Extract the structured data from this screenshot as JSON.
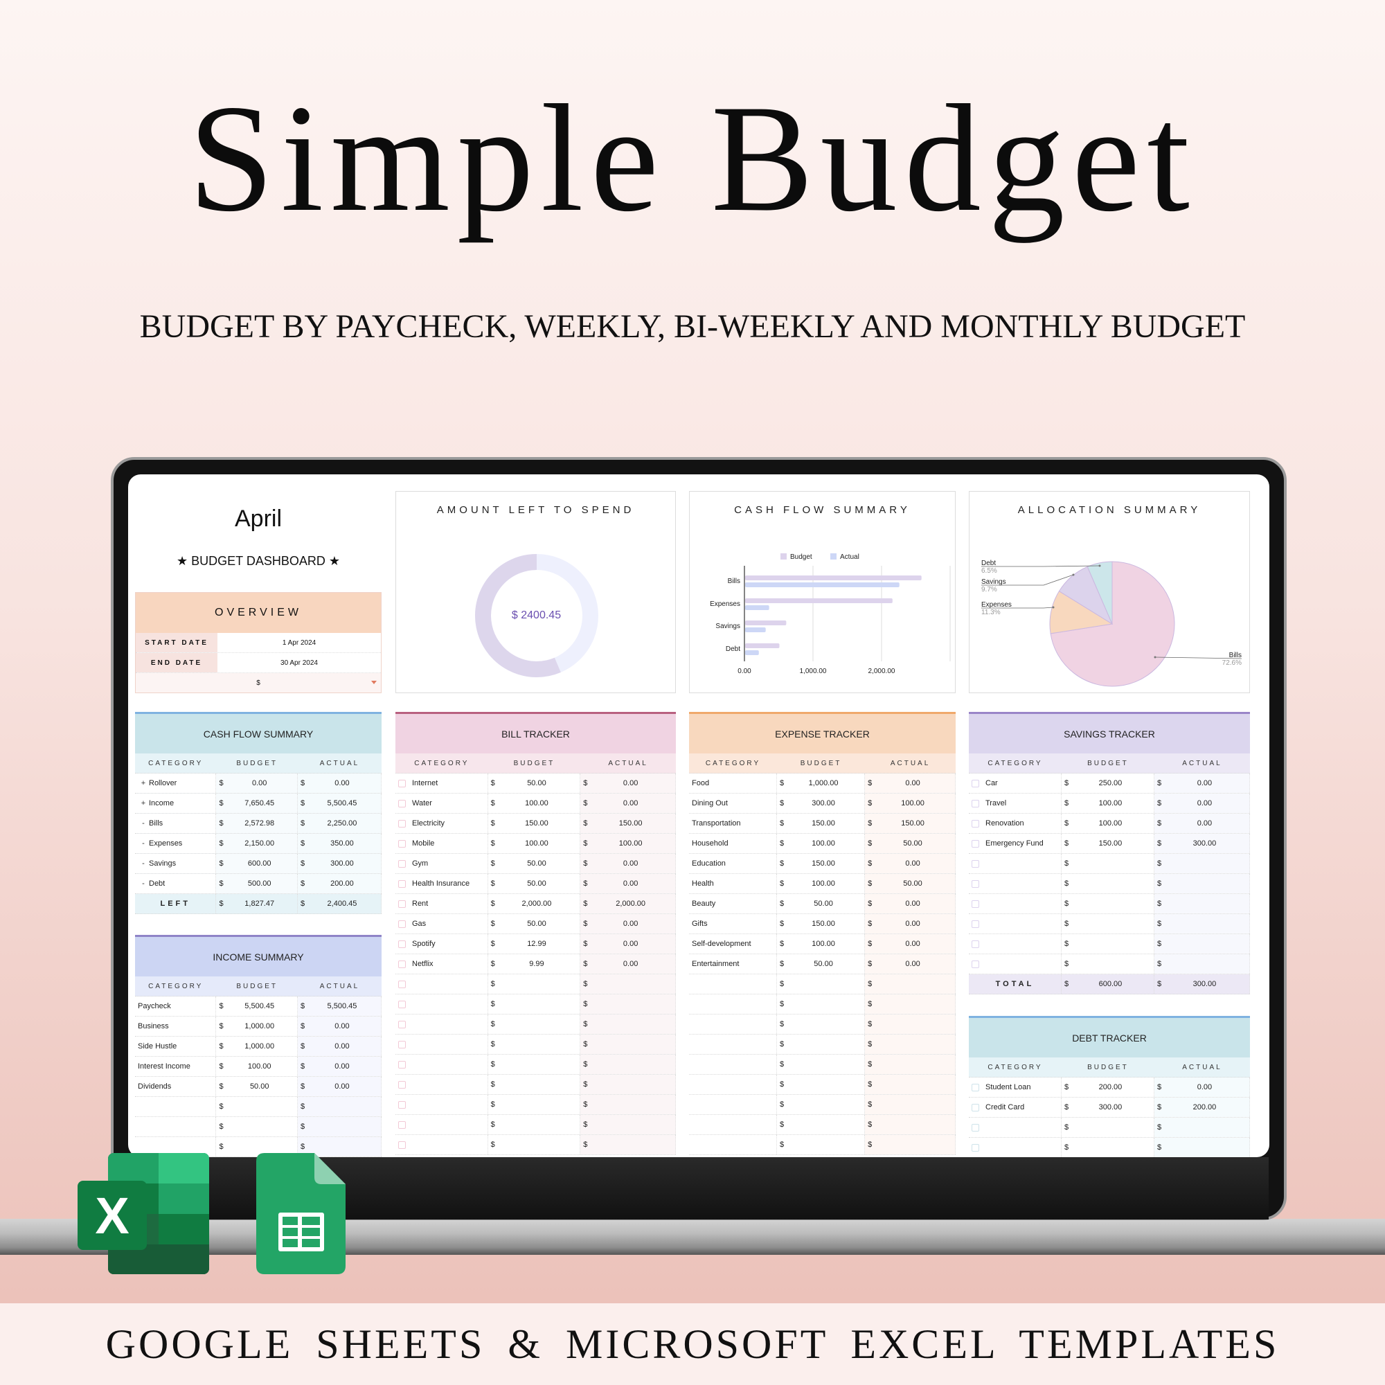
{
  "header": {
    "title": "Simple Budget",
    "subtitle": "BUDGET BY PAYCHECK, WEEKLY, BI-WEEKLY AND MONTHLY BUDGET"
  },
  "footer": {
    "text": "GOOGLE SHEETS & MICROSOFT EXCEL TEMPLATES"
  },
  "icons": {
    "excel": "microsoft-excel-icon",
    "sheets": "google-sheets-icon",
    "excel_letter": "X"
  },
  "currency": "$",
  "dashboard": {
    "month": "April",
    "subtitle": "★ BUDGET DASHBOARD ★",
    "overview": {
      "title": "OVERVIEW",
      "start_label": "START DATE",
      "start_value": "1 Apr 2024",
      "end_label": "END DATE",
      "end_value": "30 Apr 2024",
      "currency_select": "$"
    }
  },
  "cards": {
    "amount_left": {
      "title": "AMOUNT LEFT TO SPEND",
      "value": "$ 2400.45"
    },
    "cash_flow": {
      "title": "CASH FLOW SUMMARY"
    },
    "allocation": {
      "title": "ALLOCATION SUMMARY"
    }
  },
  "colors": {
    "budget": "#ddd3ec",
    "actual": "#cdd7f6",
    "bills": "#f0d3e3",
    "expenses": "#f8d8be",
    "savings": "#dcd3ec",
    "debt": "#cce6ea",
    "donut_spent": "#ddd6ec",
    "donut_left": "#eef0fd",
    "donut_text": "#6a4fb0"
  },
  "chart_data": [
    {
      "type": "pie",
      "name": "amount-left-donut",
      "center_label": "$ 2400.45",
      "left": 2400.45,
      "spent_fraction": 0.564
    },
    {
      "type": "bar",
      "orientation": "horizontal",
      "categories": [
        "Bills",
        "Expenses",
        "Savings",
        "Debt"
      ],
      "series": [
        {
          "name": "Budget",
          "values": [
            2572.98,
            2150.0,
            600.0,
            500.0
          ]
        },
        {
          "name": "Actual",
          "values": [
            2250.0,
            350.0,
            300.0,
            200.0
          ]
        }
      ],
      "xlim": [
        0,
        3000
      ],
      "xticks": [
        "0.00",
        "1,000.00",
        "2,000.00"
      ],
      "xtick_values": [
        0,
        1000,
        2000
      ],
      "grid": true,
      "legend": "top"
    },
    {
      "type": "pie",
      "categories": [
        "Bills",
        "Expenses",
        "Savings",
        "Debt"
      ],
      "values": [
        72.6,
        11.3,
        9.7,
        6.5
      ],
      "labels": [
        "72.6%",
        "11.3%",
        "9.7%",
        "6.5%"
      ]
    }
  ],
  "tables": {
    "cash_flow": {
      "title": "CASH FLOW SUMMARY",
      "columns": [
        "CATEGORY",
        "BUDGET",
        "ACTUAL"
      ],
      "rows": [
        {
          "sign": "+",
          "category": "Rollover",
          "budget": "0.00",
          "actual": "0.00"
        },
        {
          "sign": "+",
          "category": "Income",
          "budget": "7,650.45",
          "actual": "5,500.45"
        },
        {
          "sign": "-",
          "category": "Bills",
          "budget": "2,572.98",
          "actual": "2,250.00"
        },
        {
          "sign": "-",
          "category": "Expenses",
          "budget": "2,150.00",
          "actual": "350.00"
        },
        {
          "sign": "-",
          "category": "Savings",
          "budget": "600.00",
          "actual": "300.00"
        },
        {
          "sign": "-",
          "category": "Debt",
          "budget": "500.00",
          "actual": "200.00"
        }
      ],
      "total": {
        "label": "LEFT",
        "budget": "1,827.47",
        "actual": "2,400.45"
      }
    },
    "income": {
      "title": "INCOME SUMMARY",
      "columns": [
        "CATEGORY",
        "BUDGET",
        "ACTUAL"
      ],
      "rows": [
        {
          "category": "Paycheck",
          "budget": "5,500.45",
          "actual": "5,500.45"
        },
        {
          "category": "Business",
          "budget": "1,000.00",
          "actual": "0.00"
        },
        {
          "category": "Side Hustle",
          "budget": "1,000.00",
          "actual": "0.00"
        },
        {
          "category": "Interest Income",
          "budget": "100.00",
          "actual": "0.00"
        },
        {
          "category": "Dividends",
          "budget": "50.00",
          "actual": "0.00"
        },
        {
          "category": "",
          "budget": "",
          "actual": ""
        },
        {
          "category": "",
          "budget": "",
          "actual": ""
        },
        {
          "category": "",
          "budget": "",
          "actual": ""
        }
      ]
    },
    "bill": {
      "title": "BILL TRACKER",
      "columns": [
        "CATEGORY",
        "BUDGET",
        "ACTUAL"
      ],
      "rows": [
        {
          "category": "Internet",
          "budget": "50.00",
          "actual": "0.00"
        },
        {
          "category": "Water",
          "budget": "100.00",
          "actual": "0.00"
        },
        {
          "category": "Electricity",
          "budget": "150.00",
          "actual": "150.00"
        },
        {
          "category": "Mobile",
          "budget": "100.00",
          "actual": "100.00"
        },
        {
          "category": "Gym",
          "budget": "50.00",
          "actual": "0.00"
        },
        {
          "category": "Health Insurance",
          "budget": "50.00",
          "actual": "0.00"
        },
        {
          "category": "Rent",
          "budget": "2,000.00",
          "actual": "2,000.00"
        },
        {
          "category": "Gas",
          "budget": "50.00",
          "actual": "0.00"
        },
        {
          "category": "Spotify",
          "budget": "12.99",
          "actual": "0.00"
        },
        {
          "category": "Netflix",
          "budget": "9.99",
          "actual": "0.00"
        },
        {
          "category": "",
          "budget": "",
          "actual": ""
        },
        {
          "category": "",
          "budget": "",
          "actual": ""
        },
        {
          "category": "",
          "budget": "",
          "actual": ""
        },
        {
          "category": "",
          "budget": "",
          "actual": ""
        },
        {
          "category": "",
          "budget": "",
          "actual": ""
        },
        {
          "category": "",
          "budget": "",
          "actual": ""
        },
        {
          "category": "",
          "budget": "",
          "actual": ""
        },
        {
          "category": "",
          "budget": "",
          "actual": ""
        },
        {
          "category": "",
          "budget": "",
          "actual": ""
        }
      ]
    },
    "expense": {
      "title": "EXPENSE TRACKER",
      "columns": [
        "CATEGORY",
        "BUDGET",
        "ACTUAL"
      ],
      "rows": [
        {
          "category": "Food",
          "budget": "1,000.00",
          "actual": "0.00"
        },
        {
          "category": "Dining Out",
          "budget": "300.00",
          "actual": "100.00"
        },
        {
          "category": "Transportation",
          "budget": "150.00",
          "actual": "150.00"
        },
        {
          "category": "Household",
          "budget": "100.00",
          "actual": "50.00"
        },
        {
          "category": "Education",
          "budget": "150.00",
          "actual": "0.00"
        },
        {
          "category": "Health",
          "budget": "100.00",
          "actual": "50.00"
        },
        {
          "category": "Beauty",
          "budget": "50.00",
          "actual": "0.00"
        },
        {
          "category": "Gifts",
          "budget": "150.00",
          "actual": "0.00"
        },
        {
          "category": "Self-development",
          "budget": "100.00",
          "actual": "0.00"
        },
        {
          "category": "Entertainment",
          "budget": "50.00",
          "actual": "0.00"
        },
        {
          "category": "",
          "budget": "",
          "actual": ""
        },
        {
          "category": "",
          "budget": "",
          "actual": ""
        },
        {
          "category": "",
          "budget": "",
          "actual": ""
        },
        {
          "category": "",
          "budget": "",
          "actual": ""
        },
        {
          "category": "",
          "budget": "",
          "actual": ""
        },
        {
          "category": "",
          "budget": "",
          "actual": ""
        },
        {
          "category": "",
          "budget": "",
          "actual": ""
        },
        {
          "category": "",
          "budget": "",
          "actual": ""
        },
        {
          "category": "",
          "budget": "",
          "actual": ""
        }
      ]
    },
    "savings": {
      "title": "SAVINGS TRACKER",
      "columns": [
        "CATEGORY",
        "BUDGET",
        "ACTUAL"
      ],
      "rows": [
        {
          "category": "Car",
          "budget": "250.00",
          "actual": "0.00"
        },
        {
          "category": "Travel",
          "budget": "100.00",
          "actual": "0.00"
        },
        {
          "category": "Renovation",
          "budget": "100.00",
          "actual": "0.00"
        },
        {
          "category": "Emergency Fund",
          "budget": "150.00",
          "actual": "300.00"
        },
        {
          "category": "",
          "budget": "",
          "actual": ""
        },
        {
          "category": "",
          "budget": "",
          "actual": ""
        },
        {
          "category": "",
          "budget": "",
          "actual": ""
        },
        {
          "category": "",
          "budget": "",
          "actual": ""
        },
        {
          "category": "",
          "budget": "",
          "actual": ""
        },
        {
          "category": "",
          "budget": "",
          "actual": ""
        }
      ],
      "total": {
        "label": "TOTAL",
        "budget": "600.00",
        "actual": "300.00"
      }
    },
    "debt": {
      "title": "DEBT TRACKER",
      "columns": [
        "CATEGORY",
        "BUDGET",
        "ACTUAL"
      ],
      "rows": [
        {
          "category": "Student Loan",
          "budget": "200.00",
          "actual": "0.00"
        },
        {
          "category": "Credit Card",
          "budget": "300.00",
          "actual": "200.00"
        },
        {
          "category": "",
          "budget": "",
          "actual": ""
        },
        {
          "category": "",
          "budget": "",
          "actual": ""
        }
      ]
    }
  }
}
